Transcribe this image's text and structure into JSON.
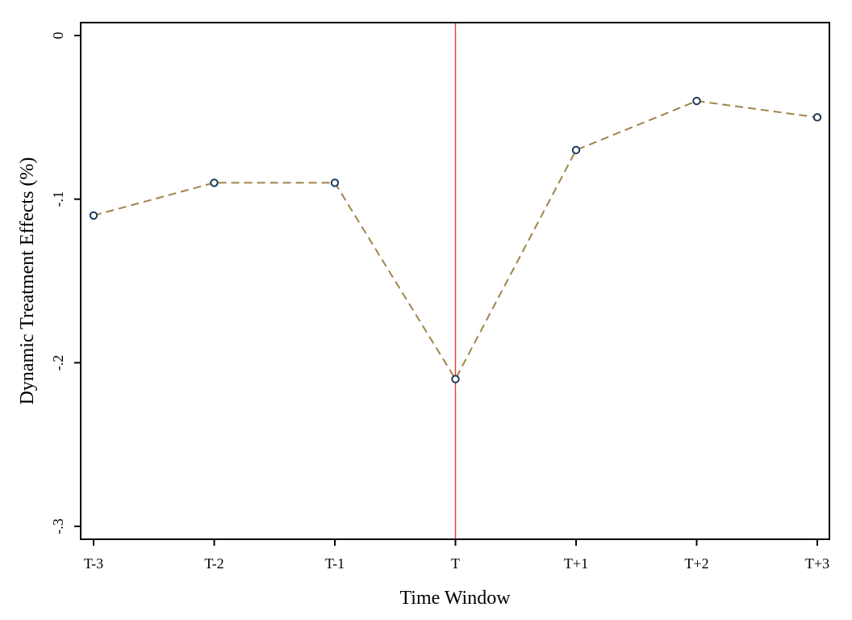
{
  "chart_data": {
    "type": "line",
    "xlabel": "Time Window",
    "ylabel": "Dynamic Treatment Effects (%)",
    "categories": [
      "T-3",
      "T-2",
      "T-1",
      "T",
      "T+1",
      "T+2",
      "T+3"
    ],
    "series": [
      {
        "values": [
          -0.11,
          -0.09,
          -0.09,
          -0.21,
          -0.07,
          -0.04,
          -0.05
        ]
      }
    ],
    "ylim": [
      -0.3,
      0
    ],
    "yticks": [
      0,
      -0.1,
      -0.2,
      -0.3
    ],
    "ytick_labels": [
      "0",
      "-.1",
      "-.2",
      "-.3"
    ],
    "reference_line": {
      "category": "T",
      "color": "#e8403a"
    },
    "line_color": "#a0834a",
    "line_style": "dashed",
    "marker_color": "#1f3a5f",
    "marker": "hollow-circle",
    "grid": false,
    "legend": "none"
  }
}
